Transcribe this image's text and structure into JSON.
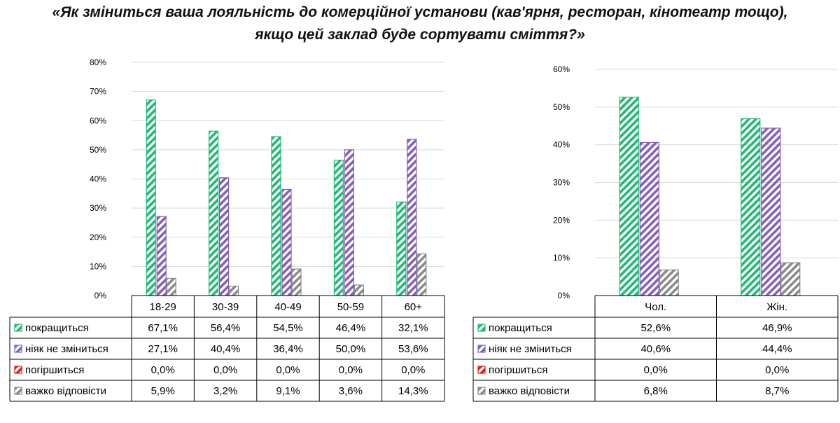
{
  "title_line1": "«Як зміниться ваша лояльність до комерційної установи (кав'ярня, ресторан, кінотеатр тощо),",
  "title_line2": "якщо цей заклад буде сортувати сміття?»",
  "colors": {
    "green": "#1fb975",
    "purple": "#8460b8",
    "red": "#e01c1c",
    "gray": "#8a8a8a"
  },
  "chart_data": [
    {
      "type": "bar",
      "name": "age",
      "categories": [
        "18-29",
        "30-39",
        "40-49",
        "50-59",
        "60+"
      ],
      "ylim": [
        0,
        80
      ],
      "yticks": [
        "0%",
        "10%",
        "20%",
        "30%",
        "40%",
        "50%",
        "60%",
        "70%",
        "80%"
      ],
      "series": [
        {
          "name": "покращиться",
          "values": [
            67.1,
            56.4,
            54.5,
            46.4,
            32.1
          ],
          "labels": [
            "67,1%",
            "56,4%",
            "54,5%",
            "46,4%",
            "32,1%"
          ],
          "color": "#1fb975"
        },
        {
          "name": "ніяк не зміниться",
          "values": [
            27.1,
            40.4,
            36.4,
            50.0,
            53.6
          ],
          "labels": [
            "27,1%",
            "40,4%",
            "36,4%",
            "50,0%",
            "53,6%"
          ],
          "color": "#8460b8"
        },
        {
          "name": "погіршиться",
          "values": [
            0.0,
            0.0,
            0.0,
            0.0,
            0.0
          ],
          "labels": [
            "0,0%",
            "0,0%",
            "0,0%",
            "0,0%",
            "0,0%"
          ],
          "color": "#e01c1c"
        },
        {
          "name": "важко відповісти",
          "values": [
            5.9,
            3.2,
            9.1,
            3.6,
            14.3
          ],
          "labels": [
            "5,9%",
            "3,2%",
            "9,1%",
            "3,6%",
            "14,3%"
          ],
          "color": "#8a8a8a"
        }
      ]
    },
    {
      "type": "bar",
      "name": "gender",
      "categories": [
        "Чол.",
        "Жін."
      ],
      "ylim": [
        0,
        60
      ],
      "yticks": [
        "0%",
        "10%",
        "20%",
        "30%",
        "40%",
        "50%",
        "60%"
      ],
      "series": [
        {
          "name": "покращиться",
          "values": [
            52.6,
            46.9
          ],
          "labels": [
            "52,6%",
            "46,9%"
          ],
          "color": "#1fb975"
        },
        {
          "name": "ніяк не зміниться",
          "values": [
            40.6,
            44.4
          ],
          "labels": [
            "40,6%",
            "44,4%"
          ],
          "color": "#8460b8"
        },
        {
          "name": "погіршиться",
          "values": [
            0.0,
            0.0
          ],
          "labels": [
            "0,0%",
            "0,0%"
          ],
          "color": "#e01c1c"
        },
        {
          "name": "важко відповісти",
          "values": [
            6.8,
            8.7
          ],
          "labels": [
            "6,8%",
            "8,7%"
          ],
          "color": "#8a8a8a"
        }
      ]
    }
  ]
}
